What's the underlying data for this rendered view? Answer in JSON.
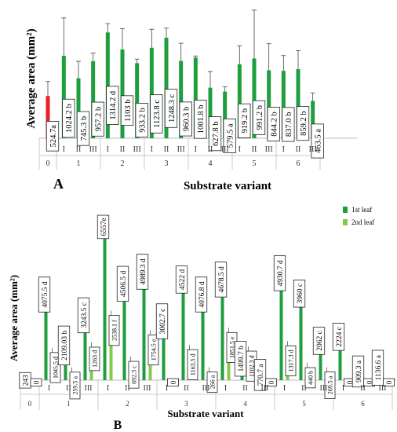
{
  "chart_data": [
    {
      "panel": "A",
      "type": "bar",
      "ylabel": "Average area (mm²)",
      "xlabel": "Substrate variant",
      "ylim": [
        0,
        1600
      ],
      "groups": [
        {
          "label": "0",
          "bars": [
            {
              "tick": "",
              "value": 524.7,
              "err": 180,
              "label": "524.7a",
              "color": "#e8202a"
            }
          ]
        },
        {
          "label": "1",
          "bars": [
            {
              "tick": "I",
              "value": 1024.2,
              "err": 470,
              "label": "1024.2 b",
              "color": "#1f9e3e"
            },
            {
              "tick": "II",
              "value": 745.3,
              "err": 210,
              "label": "745.3 b",
              "color": "#1f9e3e"
            },
            {
              "tick": "III",
              "value": 957.2,
              "err": 100,
              "label": "957.2 b",
              "color": "#1f9e3e"
            }
          ]
        },
        {
          "label": "2",
          "bars": [
            {
              "tick": "I",
              "value": 1314.2,
              "err": 110,
              "label": "1314.2 d",
              "color": "#1f9e3e"
            },
            {
              "tick": "II",
              "value": 1103,
              "err": 260,
              "label": "1103 b",
              "color": "#1f9e3e"
            },
            {
              "tick": "III",
              "value": 933.2,
              "err": 50,
              "label": "933.2 b",
              "color": "#1f9e3e"
            }
          ]
        },
        {
          "label": "3",
          "bars": [
            {
              "tick": "I",
              "value": 1123.8,
              "err": 230,
              "label": "1123.8 c",
              "color": "#1f9e3e"
            },
            {
              "tick": "II",
              "value": 1248.3,
              "err": 120,
              "label": "1248.3 c",
              "color": "#1f9e3e"
            },
            {
              "tick": "III",
              "value": 960.3,
              "err": 220,
              "label": "960.3 b",
              "color": "#1f9e3e"
            }
          ]
        },
        {
          "label": "4",
          "bars": [
            {
              "tick": "I",
              "value": 1001.8,
              "err": 20,
              "label": "1001.8 b",
              "color": "#1f9e3e"
            },
            {
              "tick": "II",
              "value": 627.8,
              "err": 200,
              "label": "627.8 b",
              "color": "#1f9e3e"
            },
            {
              "tick": "III",
              "value": 579.5,
              "err": 60,
              "label": "579.5 a",
              "color": "#1f9e3e"
            }
          ]
        },
        {
          "label": "5",
          "bars": [
            {
              "tick": "I",
              "value": 919.2,
              "err": 230,
              "label": "919.2 b",
              "color": "#1f9e3e"
            },
            {
              "tick": "II",
              "value": 991.2,
              "err": 600,
              "label": "991.2 b",
              "color": "#1f9e3e"
            },
            {
              "tick": "III",
              "value": 844.2,
              "err": 330,
              "label": "844.2 b",
              "color": "#1f9e3e"
            }
          ]
        },
        {
          "label": "6",
          "bars": [
            {
              "tick": "I",
              "value": 837.0,
              "err": 190,
              "label": "837.0 b",
              "color": "#1f9e3e"
            },
            {
              "tick": "II",
              "value": 859.2,
              "err": 230,
              "label": "859.2 b",
              "color": "#1f9e3e"
            },
            {
              "tick": "III",
              "value": 463.5,
              "err": 100,
              "label": "463.5 a",
              "color": "#1f9e3e"
            }
          ]
        }
      ]
    },
    {
      "panel": "B",
      "type": "bar",
      "ylabel": "Average area (mm²)",
      "xlabel": "Substrate variant",
      "ylim": [
        0,
        7000
      ],
      "legend": {
        "position": "top-right",
        "items": [
          {
            "name": "1st leaf",
            "color": "#1f9e3e"
          },
          {
            "name": "2nd leaf",
            "color": "#86c94a"
          }
        ]
      },
      "groups": [
        {
          "label": "0",
          "bars": [
            {
              "tick": "",
              "v1": 243,
              "l1": "243",
              "c1": "#e8202a",
              "v2": 0,
              "l2": "0"
            }
          ]
        },
        {
          "label": "1",
          "bars": [
            {
              "tick": "I",
              "v1": 4075.5,
              "l1": "4075.5 d",
              "v2": 1045.5,
              "l2": "1045.5 d"
            },
            {
              "tick": "II",
              "v1": 2109.03,
              "l1": "2109.03 b",
              "v2": 259.5,
              "l2": "259.5 a"
            },
            {
              "tick": "III",
              "v1": 3243.5,
              "l1": "3243.5 c",
              "v2": 1263,
              "l2": "1263 d"
            }
          ]
        },
        {
          "label": "2",
          "bars": [
            {
              "tick": "I",
              "v1": 6557,
              "l1": "6557e",
              "v2": 2538.1,
              "l2": "2538.1 f"
            },
            {
              "tick": "II",
              "v1": 4506.5,
              "l1": "4506.5 d",
              "v2": 692.3,
              "l2": "692.3 c"
            },
            {
              "tick": "III",
              "v1": 4989.3,
              "l1": "4989.3 d",
              "v2": 1754.5,
              "l2": "1754.5 e"
            }
          ]
        },
        {
          "label": "3",
          "bars": [
            {
              "tick": "I",
              "v1": 3002.7,
              "l1": "3002.7 c",
              "v2": 0,
              "l2": "0"
            },
            {
              "tick": "II",
              "v1": 4522,
              "l1": "4522 d",
              "v2": 1163.5,
              "l2": "1163.5 d"
            },
            {
              "tick": "III",
              "v1": 4076.8,
              "l1": "4076.8 d",
              "v2": 266,
              "l2": "266 a"
            }
          ]
        },
        {
          "label": "4",
          "bars": [
            {
              "tick": "I",
              "v1": 4678.5,
              "l1": "4678.5 d",
              "v2": 1851.5,
              "l2": "1851.5 e"
            },
            {
              "tick": "II",
              "v1": 1499.7,
              "l1": "1499.7 b",
              "v2": 1102.3,
              "l2": "1102.3 d"
            },
            {
              "tick": "III",
              "v1": 770.7,
              "l1": "770.7 a",
              "v2": 0,
              "l2": "0"
            }
          ]
        },
        {
          "label": "5",
          "bars": [
            {
              "tick": "I",
              "v1": 4930.7,
              "l1": "4930.7 d",
              "v2": 1317.3,
              "l2": "1317.3 d"
            },
            {
              "tick": "II",
              "v1": 3960,
              "l1": "3960 c",
              "v2": 440,
              "l2": "440 b"
            },
            {
              "tick": "III",
              "v1": 2062,
              "l1": "2062 c",
              "v2": 269.5,
              "l2": "269.5 a"
            }
          ]
        },
        {
          "label": "6",
          "bars": [
            {
              "tick": "I",
              "v1": 2224,
              "l1": "2224 c",
              "v2": 0,
              "l2": "0"
            },
            {
              "tick": "II",
              "v1": 909.3,
              "l1": "909.3 a",
              "v2": 0,
              "l2": "0"
            },
            {
              "tick": "III",
              "v1": 1136.6,
              "l1": "1136.6 a",
              "v2": 0,
              "l2": "0"
            }
          ]
        }
      ]
    }
  ]
}
